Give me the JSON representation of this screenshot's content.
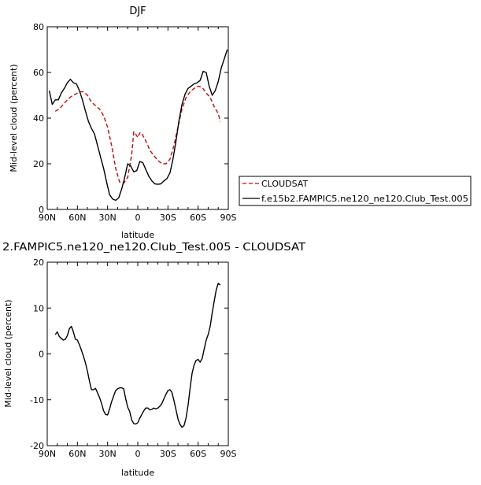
{
  "chart_data": [
    {
      "type": "line",
      "title": "DJF",
      "xlabel": "latitude",
      "ylabel": "Mid-level cloud (percent)",
      "xlim": [
        90,
        -90
      ],
      "ylim": [
        0,
        80
      ],
      "xtick_values": [
        90,
        60,
        30,
        0,
        -30,
        -60,
        -90
      ],
      "xtick_labels": [
        "90N",
        "60N",
        "30N",
        "0",
        "30S",
        "60S",
        "90S"
      ],
      "ytick_values": [
        0,
        20,
        40,
        60,
        80
      ],
      "ytick_labels": [
        "0",
        "20",
        "40",
        "60",
        "80"
      ],
      "legend_position": "right",
      "series": [
        {
          "name": "CLOUDSAT",
          "color": "#e00000",
          "dash": "dashed",
          "x": [
            82,
            78,
            74,
            70,
            66,
            62,
            58,
            54,
            50,
            46,
            42,
            38,
            34,
            30,
            26,
            22,
            18,
            14,
            10,
            6,
            4,
            2,
            0,
            -2,
            -4,
            -6,
            -8,
            -12,
            -16,
            -20,
            -24,
            -28,
            -32,
            -36,
            -40,
            -44,
            -48,
            -52,
            -56,
            -60,
            -64,
            -68,
            -72,
            -76,
            -80,
            -82
          ],
          "y": [
            43,
            44,
            46,
            48,
            49.5,
            50.5,
            51.5,
            51.5,
            50,
            47,
            45.5,
            44,
            41,
            36,
            28,
            18,
            12,
            11.5,
            14,
            24,
            34,
            33,
            31.5,
            33.5,
            33.5,
            31.5,
            30,
            26,
            23.5,
            21.5,
            20,
            20,
            22,
            28,
            36,
            44,
            49,
            51.5,
            53,
            54,
            53.5,
            51,
            49,
            45,
            42,
            38.5
          ]
        },
        {
          "name": "f.e15b2.FAMPIC5.ne120_ne120.Club_Test.005",
          "color": "#000000",
          "dash": "solid",
          "x": [
            88,
            85,
            82,
            79,
            76,
            73,
            70,
            67,
            64,
            61,
            58,
            55,
            52,
            49,
            46,
            43,
            40,
            37,
            34,
            31,
            28,
            25,
            22,
            19,
            16,
            13,
            10,
            7,
            4,
            1,
            -2,
            -5,
            -8,
            -11,
            -14,
            -17,
            -20,
            -23,
            -26,
            -29,
            -32,
            -35,
            -38,
            -41,
            -44,
            -47,
            -50,
            -53,
            -56,
            -59,
            -62,
            -65,
            -68,
            -71,
            -74,
            -77,
            -80,
            -83,
            -86,
            -89
          ],
          "y": [
            52,
            46,
            48,
            48,
            51,
            53,
            55.5,
            57,
            55.5,
            55,
            52,
            48,
            43,
            38.5,
            35.5,
            33,
            28,
            23,
            18,
            12,
            6.5,
            4.5,
            4,
            5,
            9,
            14,
            20,
            19,
            16.5,
            17,
            21,
            20.5,
            17.5,
            14.5,
            12.5,
            11.2,
            11,
            11.2,
            12.5,
            13.5,
            16,
            22,
            30,
            39,
            46,
            50.5,
            53,
            54,
            55,
            55.5,
            56.5,
            60.5,
            60,
            54,
            50,
            52,
            56,
            62,
            66,
            70
          ]
        }
      ]
    },
    {
      "type": "line",
      "title": "2.FAMPIC5.ne120_ne120.Club_Test.005 - CLOUDSAT",
      "xlabel": "latitude",
      "ylabel": "Mid-level cloud (percent)",
      "xlim": [
        90,
        -90
      ],
      "ylim": [
        -20,
        20
      ],
      "xtick_values": [
        90,
        60,
        30,
        0,
        -30,
        -60,
        -90
      ],
      "xtick_labels": [
        "90N",
        "60N",
        "30N",
        "0",
        "30S",
        "60S",
        "90S"
      ],
      "ytick_values": [
        -20,
        -10,
        0,
        10,
        20
      ],
      "ytick_labels": [
        "-20",
        "-10",
        "0",
        "10",
        "20"
      ],
      "series": [
        {
          "color": "#000000",
          "dash": "solid",
          "x": [
            82,
            80,
            78,
            76,
            74,
            72,
            70,
            68,
            66,
            64,
            62,
            60,
            58,
            56,
            54,
            52,
            50,
            48,
            46,
            44,
            42,
            40,
            38,
            36,
            34,
            32,
            30,
            28,
            26,
            24,
            22,
            20,
            18,
            16,
            14,
            12,
            10,
            8,
            6,
            4,
            2,
            0,
            -2,
            -4,
            -6,
            -8,
            -10,
            -12,
            -14,
            -16,
            -18,
            -20,
            -22,
            -24,
            -26,
            -28,
            -30,
            -32,
            -34,
            -36,
            -38,
            -40,
            -42,
            -44,
            -46,
            -48,
            -50,
            -52,
            -54,
            -56,
            -58,
            -60,
            -62,
            -64,
            -66,
            -68,
            -70,
            -72,
            -74,
            -76,
            -78,
            -80,
            -82
          ],
          "y": [
            4.2,
            4.8,
            3.8,
            3.4,
            3,
            3.2,
            4,
            5.5,
            6,
            4.8,
            3.2,
            3,
            2,
            0.8,
            -0.5,
            -2,
            -3.8,
            -6,
            -7.8,
            -7.8,
            -7.5,
            -8.5,
            -9.5,
            -10.8,
            -12.4,
            -13.2,
            -13.3,
            -12,
            -10.4,
            -9.2,
            -8,
            -7.6,
            -7.4,
            -7.4,
            -7.6,
            -9.8,
            -11.6,
            -12.6,
            -14.4,
            -15.2,
            -15.3,
            -15,
            -14,
            -13.2,
            -12.4,
            -11.8,
            -11.8,
            -12.2,
            -12.1,
            -11.8,
            -12,
            -11.8,
            -11.4,
            -10.8,
            -9.8,
            -8.8,
            -8,
            -7.8,
            -8.4,
            -10.2,
            -12.2,
            -14.2,
            -15.4,
            -16,
            -15.6,
            -14,
            -11.2,
            -7.6,
            -4.2,
            -2.4,
            -1.4,
            -1.2,
            -1.8,
            -1,
            1,
            3,
            4.2,
            6,
            9,
            11.5,
            14,
            15.4,
            15
          ]
        }
      ]
    }
  ]
}
